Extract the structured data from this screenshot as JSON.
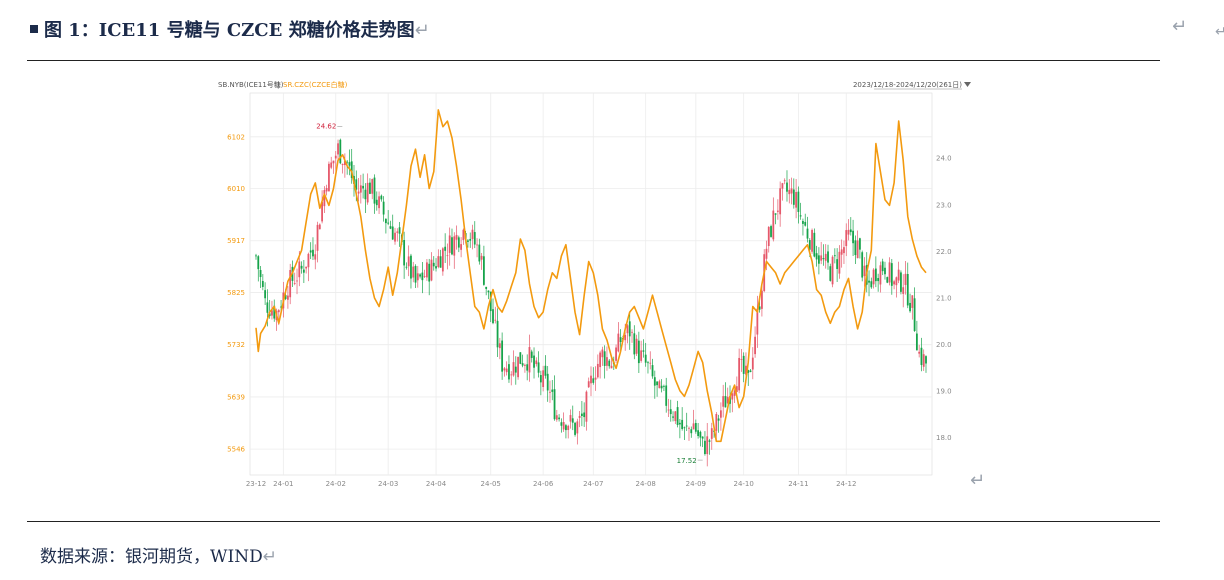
{
  "header": {
    "title": "图 1：ICE11 号糖与 CZCE 郑糖价格走势图",
    "return_mark": "↵"
  },
  "footer": {
    "source": "数据来源：银河期货，WIND",
    "return_mark": "↵"
  },
  "colors": {
    "up": "#e5586a",
    "down": "#16a34a",
    "line": "#f39a0f",
    "grid": "#ececec",
    "axis_text": "#888888",
    "left_axis_text": "#f39a0f"
  },
  "chart_data": {
    "type": "line",
    "legend": {
      "sb": "SB.NYB(ICE11号糖)",
      "sep": " | ",
      "sr": "SR.CZC(CZCE白糖)"
    },
    "range_label": "2023/12/18-2024/12/20(261日)",
    "left_axis": {
      "ticks": [
        "6102",
        "6010",
        "5917",
        "5825",
        "5732",
        "5639",
        "5546"
      ],
      "ylim": [
        5500,
        6180
      ]
    },
    "right_axis": {
      "ticks": [
        "24.0",
        "23.0",
        "22.0",
        "21.0",
        "20.0",
        "19.0",
        "18.0"
      ],
      "ylim": [
        17.2,
        25.4
      ]
    },
    "x_labels": [
      "23-12",
      "24-01",
      "24-02",
      "24-03",
      "24-04",
      "24-05",
      "24-06",
      "24-07",
      "24-08",
      "24-09",
      "24-10",
      "24-11",
      "24-12"
    ],
    "annotations": {
      "high": "24.62",
      "low": "17.52"
    },
    "series": [
      {
        "name": "SB.NYB(ICE11号糖)",
        "type": "candlestick",
        "axis": "right",
        "keypoints": [
          [
            0,
            21.9
          ],
          [
            4,
            20.9
          ],
          [
            9,
            20.7
          ],
          [
            14,
            21.3
          ],
          [
            20,
            21.6
          ],
          [
            26,
            22.2
          ],
          [
            31,
            23.6
          ],
          [
            36,
            24.2
          ],
          [
            40,
            23.9
          ],
          [
            44,
            23.3
          ],
          [
            50,
            23.4
          ],
          [
            57,
            22.7
          ],
          [
            62,
            22.3
          ],
          [
            65,
            21.9
          ],
          [
            70,
            21.3
          ],
          [
            74,
            21.5
          ],
          [
            78,
            21.7
          ],
          [
            82,
            22.0
          ],
          [
            86,
            22.2
          ],
          [
            92,
            22.5
          ],
          [
            98,
            22.0
          ],
          [
            104,
            20.5
          ],
          [
            108,
            19.6
          ],
          [
            112,
            19.5
          ],
          [
            116,
            19.7
          ],
          [
            120,
            19.7
          ],
          [
            124,
            19.3
          ],
          [
            128,
            19.1
          ],
          [
            132,
            18.5
          ],
          [
            136,
            18.4
          ],
          [
            140,
            18.2
          ],
          [
            144,
            18.5
          ],
          [
            148,
            19.4
          ],
          [
            152,
            19.8
          ],
          [
            156,
            19.6
          ],
          [
            160,
            20.1
          ],
          [
            164,
            20.3
          ],
          [
            168,
            19.8
          ],
          [
            172,
            19.5
          ],
          [
            176,
            19.0
          ],
          [
            180,
            18.8
          ],
          [
            184,
            18.5
          ],
          [
            188,
            18.1
          ],
          [
            192,
            18.3
          ],
          [
            196,
            17.8
          ],
          [
            200,
            18.0
          ],
          [
            204,
            18.6
          ],
          [
            208,
            19.0
          ],
          [
            212,
            19.5
          ],
          [
            216,
            19.2
          ],
          [
            220,
            20.6
          ],
          [
            224,
            22.1
          ],
          [
            228,
            22.9
          ],
          [
            232,
            23.3
          ],
          [
            236,
            23.2
          ],
          [
            240,
            22.6
          ],
          [
            244,
            22.2
          ],
          [
            248,
            21.8
          ],
          [
            252,
            21.6
          ],
          [
            256,
            21.9
          ],
          [
            260,
            22.3
          ],
          [
            264,
            22.1
          ],
          [
            268,
            21.2
          ],
          [
            272,
            21.6
          ],
          [
            276,
            21.7
          ],
          [
            280,
            21.3
          ],
          [
            284,
            21.4
          ],
          [
            288,
            20.8
          ],
          [
            291,
            19.8
          ],
          [
            294,
            19.6
          ]
        ]
      },
      {
        "name": "SR.CZC(CZCE白糖)",
        "type": "line",
        "axis": "left",
        "points": [
          [
            0,
            5762
          ],
          [
            1,
            5720
          ],
          [
            2,
            5752
          ],
          [
            4,
            5765
          ],
          [
            6,
            5790
          ],
          [
            8,
            5800
          ],
          [
            10,
            5770
          ],
          [
            12,
            5808
          ],
          [
            14,
            5845
          ],
          [
            16,
            5860
          ],
          [
            18,
            5880
          ],
          [
            20,
            5900
          ],
          [
            22,
            5950
          ],
          [
            24,
            6000
          ],
          [
            26,
            6020
          ],
          [
            28,
            5975
          ],
          [
            30,
            6000
          ],
          [
            32,
            5980
          ],
          [
            34,
            6010
          ],
          [
            36,
            6060
          ],
          [
            38,
            6070
          ],
          [
            40,
            6050
          ],
          [
            42,
            6040
          ],
          [
            44,
            6000
          ],
          [
            46,
            5960
          ],
          [
            48,
            5900
          ],
          [
            50,
            5850
          ],
          [
            52,
            5815
          ],
          [
            54,
            5800
          ],
          [
            56,
            5830
          ],
          [
            58,
            5870
          ],
          [
            60,
            5820
          ],
          [
            62,
            5860
          ],
          [
            64,
            5920
          ],
          [
            66,
            5980
          ],
          [
            68,
            6050
          ],
          [
            70,
            6080
          ],
          [
            72,
            6030
          ],
          [
            74,
            6070
          ],
          [
            76,
            6010
          ],
          [
            78,
            6040
          ],
          [
            80,
            6150
          ],
          [
            82,
            6120
          ],
          [
            84,
            6130
          ],
          [
            86,
            6100
          ],
          [
            88,
            6050
          ],
          [
            90,
            5990
          ],
          [
            92,
            5920
          ],
          [
            94,
            5860
          ],
          [
            96,
            5800
          ],
          [
            98,
            5790
          ],
          [
            100,
            5760
          ],
          [
            102,
            5800
          ],
          [
            104,
            5830
          ],
          [
            106,
            5800
          ],
          [
            108,
            5790
          ],
          [
            110,
            5810
          ],
          [
            112,
            5835
          ],
          [
            114,
            5860
          ],
          [
            116,
            5920
          ],
          [
            118,
            5900
          ],
          [
            120,
            5840
          ],
          [
            122,
            5800
          ],
          [
            124,
            5780
          ],
          [
            126,
            5790
          ],
          [
            128,
            5830
          ],
          [
            130,
            5860
          ],
          [
            132,
            5850
          ],
          [
            134,
            5890
          ],
          [
            136,
            5910
          ],
          [
            138,
            5850
          ],
          [
            140,
            5790
          ],
          [
            142,
            5750
          ],
          [
            144,
            5820
          ],
          [
            146,
            5880
          ],
          [
            148,
            5860
          ],
          [
            150,
            5820
          ],
          [
            152,
            5760
          ],
          [
            154,
            5740
          ],
          [
            156,
            5710
          ],
          [
            158,
            5690
          ],
          [
            160,
            5720
          ],
          [
            162,
            5760
          ],
          [
            164,
            5790
          ],
          [
            166,
            5800
          ],
          [
            168,
            5780
          ],
          [
            170,
            5760
          ],
          [
            172,
            5790
          ],
          [
            174,
            5820
          ],
          [
            176,
            5790
          ],
          [
            178,
            5760
          ],
          [
            180,
            5730
          ],
          [
            182,
            5700
          ],
          [
            184,
            5670
          ],
          [
            186,
            5650
          ],
          [
            188,
            5640
          ],
          [
            190,
            5660
          ],
          [
            192,
            5690
          ],
          [
            194,
            5720
          ],
          [
            196,
            5700
          ],
          [
            198,
            5650
          ],
          [
            200,
            5610
          ],
          [
            202,
            5560
          ],
          [
            204,
            5560
          ],
          [
            206,
            5600
          ],
          [
            208,
            5640
          ],
          [
            210,
            5660
          ],
          [
            212,
            5620
          ],
          [
            214,
            5640
          ],
          [
            216,
            5700
          ],
          [
            218,
            5800
          ],
          [
            220,
            5790
          ],
          [
            222,
            5840
          ],
          [
            224,
            5880
          ],
          [
            226,
            5870
          ],
          [
            228,
            5860
          ],
          [
            230,
            5840
          ],
          [
            232,
            5860
          ],
          [
            234,
            5870
          ],
          [
            236,
            5880
          ],
          [
            238,
            5890
          ],
          [
            240,
            5900
          ],
          [
            242,
            5910
          ],
          [
            244,
            5880
          ],
          [
            246,
            5830
          ],
          [
            248,
            5820
          ],
          [
            250,
            5790
          ],
          [
            252,
            5770
          ],
          [
            254,
            5790
          ],
          [
            256,
            5800
          ],
          [
            258,
            5830
          ],
          [
            260,
            5850
          ],
          [
            262,
            5800
          ],
          [
            264,
            5760
          ],
          [
            266,
            5790
          ],
          [
            268,
            5860
          ],
          [
            270,
            5900
          ],
          [
            272,
            6090
          ],
          [
            274,
            6040
          ],
          [
            276,
            5990
          ],
          [
            278,
            5980
          ],
          [
            280,
            6020
          ],
          [
            282,
            6130
          ],
          [
            284,
            6060
          ],
          [
            286,
            5960
          ],
          [
            288,
            5920
          ],
          [
            290,
            5890
          ],
          [
            292,
            5870
          ],
          [
            294,
            5860
          ]
        ]
      }
    ]
  }
}
